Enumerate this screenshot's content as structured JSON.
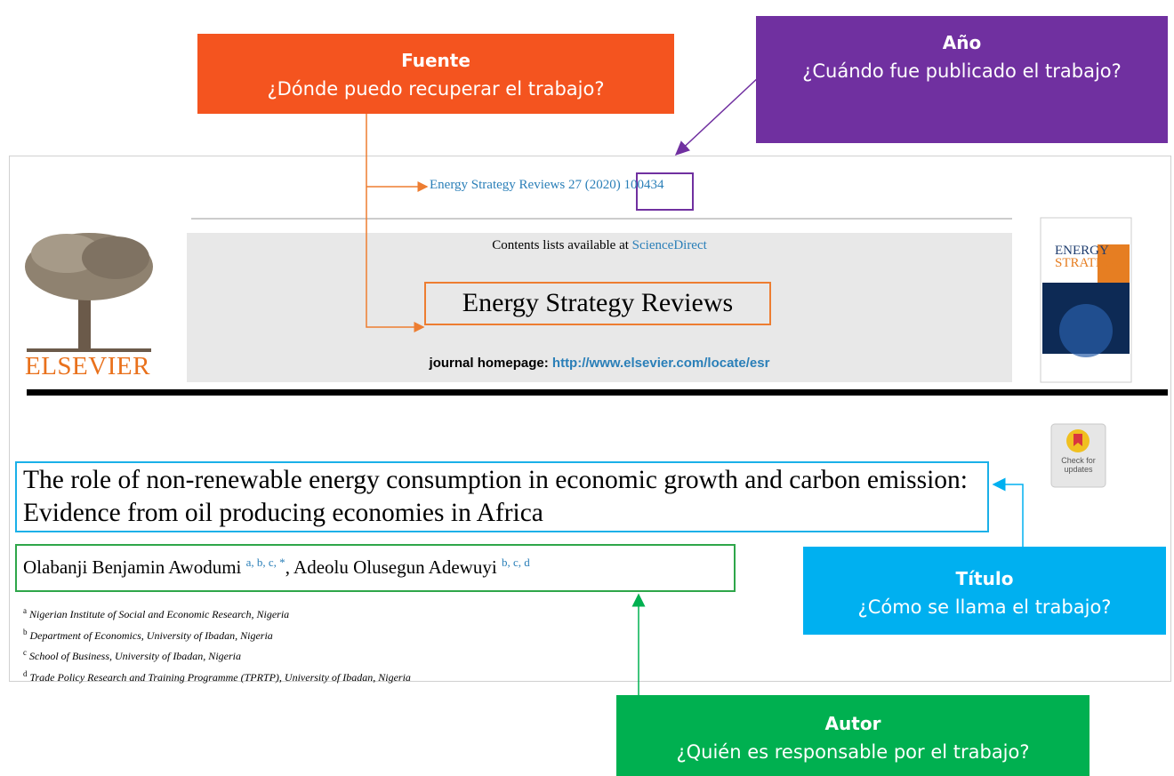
{
  "callouts": [
    {
      "title": "Fuente",
      "text": "¿Dónde puedo recuperar el trabajo?"
    },
    {
      "title": "Año",
      "text": "¿Cuándo fue publicado el trabajo?"
    },
    {
      "title": "Título",
      "text": "¿Cómo se llama el trabajo?"
    },
    {
      "title": "Autor",
      "text": "¿Quién es responsable por el trabajo?"
    }
  ],
  "article": {
    "citation": {
      "journal": "Energy Strategy Reviews 27",
      "year": "(2020)",
      "article_number": "100434"
    },
    "contents": "Contents lists available at",
    "contents_link": "ScienceDirect",
    "journal_name": "Energy Strategy Reviews",
    "homepage_label": "journal homepage:",
    "homepage_url": "http://www.elsevier.com/locate/esr",
    "publisher": "ELSEVIER",
    "cover": {
      "line1": "ENERGY",
      "line2": "STRATEGY"
    },
    "badge": "Check for updates",
    "title": "The role of non-renewable energy consumption in economic growth and carbon emission: Evidence from oil producing economies in Africa",
    "authors": [
      {
        "name": "Olabanji Benjamin Awodumi",
        "affiliations": "a, b, c, *"
      },
      {
        "name": "Adeolu Olusegun Adewuyi",
        "affiliations": "b, c, d"
      }
    ],
    "author_separator": ",",
    "affiliations": [
      {
        "key": "a",
        "text": "Nigerian Institute of Social and Economic Research, Nigeria"
      },
      {
        "key": "b",
        "text": "Department of Economics, University of Ibadan, Nigeria"
      },
      {
        "key": "c",
        "text": "School of Business, University of Ibadan, Nigeria"
      },
      {
        "key": "d",
        "text": "Trade Policy Research and Training Programme (TPRTP), University of Ibadan, Nigeria"
      }
    ]
  }
}
